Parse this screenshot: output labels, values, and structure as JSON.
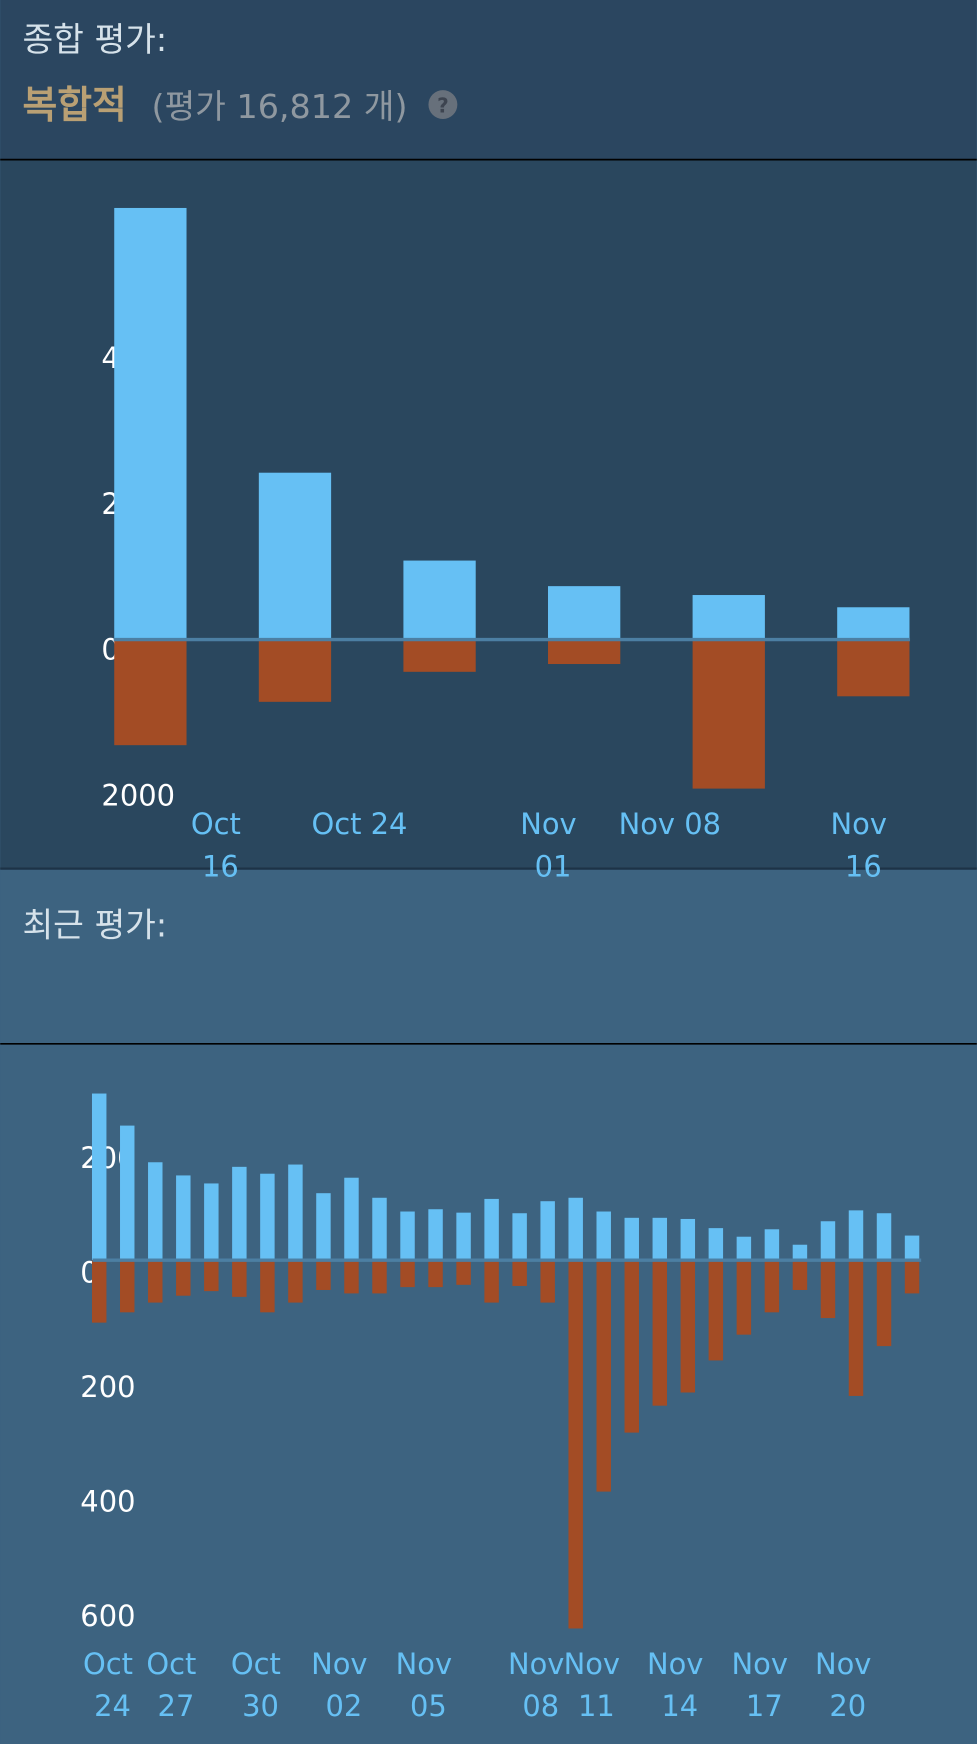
{
  "header": {
    "title": "종합 평가:",
    "rating": "복합적",
    "count": "(평가 16,812 개)"
  },
  "chart_data": [
    {
      "type": "bar",
      "stacked": true,
      "xticks": [
        "Oct 16",
        "Oct 24",
        "Nov 01",
        "Nov 08",
        "Nov 16"
      ],
      "ylim": [
        -2300,
        6500
      ],
      "yticks": [
        4000,
        2000,
        0,
        {
          "value": -2000,
          "label": "2000"
        }
      ],
      "series": [
        {
          "color": "#66c0f4",
          "values": [
            5924,
            2290,
            1084,
            733,
            611,
            443
          ]
        },
        {
          "color": "#a34c25",
          "values": [
            -1450,
            -855,
            -443,
            -336,
            -2046,
            -779
          ]
        }
      ]
    },
    {
      "type": "bar",
      "stacked": true,
      "title": "최근 평가:",
      "xticks": [
        "Oct 24",
        "Oct 27",
        "Oct 30",
        "Nov 02",
        "Nov 05",
        "Nov 08",
        "Nov 11",
        "Nov 14",
        "Nov 17",
        "Nov 20"
      ],
      "ylim": [
        -674,
        336
      ],
      "yticks": [
        200,
        0,
        {
          "value": -200,
          "label": "200"
        },
        {
          "value": -400,
          "label": "400"
        },
        {
          "value": -600,
          "label": "600"
        }
      ],
      "series": [
        {
          "color": "#66c0f4",
          "values": [
            291,
            235,
            171,
            148,
            134,
            163,
            151,
            167,
            117,
            144,
            109,
            85,
            89,
            83,
            107,
            82,
            103,
            109,
            85,
            74,
            74,
            72,
            56,
            41,
            54,
            27,
            68,
            87,
            82,
            43
          ]
        },
        {
          "color": "#a34c25",
          "values": [
            -109,
            -91,
            -74,
            -62,
            -54,
            -64,
            -91,
            -74,
            -52,
            -58,
            -58,
            -47,
            -47,
            -43,
            -74,
            -45,
            -74,
            -643,
            -404,
            -301,
            -254,
            -231,
            -175,
            -130,
            -91,
            -52,
            -101,
            -237,
            -150,
            -58
          ]
        }
      ]
    }
  ]
}
